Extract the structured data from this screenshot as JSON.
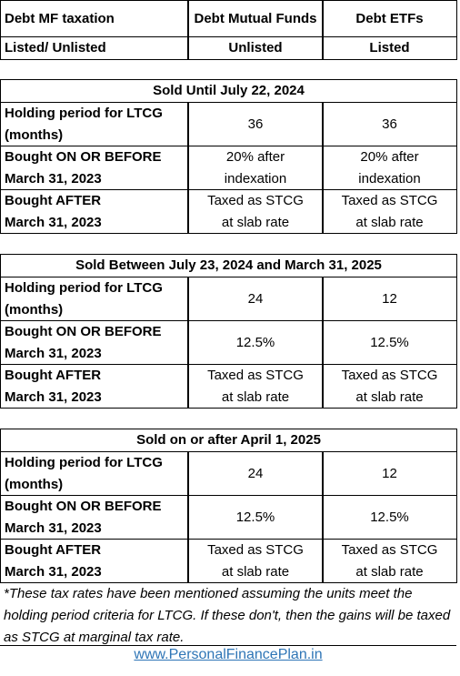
{
  "header": {
    "rows": [
      [
        [
          "Debt MF taxation"
        ],
        [
          "Debt Mutual Funds"
        ],
        [
          "Debt ETFs"
        ]
      ],
      [
        [
          "Listed/ Unlisted"
        ],
        [
          "Unlisted"
        ],
        [
          "Listed"
        ]
      ]
    ]
  },
  "sections": [
    {
      "title": "Sold Until July 22, 2024",
      "rows": [
        [
          [
            "Holding  period for LTCG",
            "(months)"
          ],
          [
            "36"
          ],
          [
            "36"
          ]
        ],
        [
          [
            "Bought ON OR BEFORE",
            "March 31, 2023"
          ],
          [
            "20% after",
            "indexation"
          ],
          [
            "20% after",
            "indexation"
          ]
        ],
        [
          [
            "Bought AFTER",
            "March 31, 2023"
          ],
          [
            "Taxed as STCG",
            "at slab rate"
          ],
          [
            "Taxed as STCG",
            "at slab rate"
          ]
        ]
      ]
    },
    {
      "title": "Sold Between July 23, 2024 and March 31, 2025",
      "rows": [
        [
          [
            "Holding  period for LTCG",
            "(months)"
          ],
          [
            "24"
          ],
          [
            "12"
          ]
        ],
        [
          [
            "Bought ON OR BEFORE",
            "March 31, 2023"
          ],
          [
            "12.5%"
          ],
          [
            "12.5%"
          ]
        ],
        [
          [
            "Bought AFTER",
            "March 31, 2023"
          ],
          [
            "Taxed as STCG",
            "at slab rate"
          ],
          [
            "Taxed as STCG",
            "at slab rate"
          ]
        ]
      ]
    },
    {
      "title": "Sold on or after April 1, 2025",
      "rows": [
        [
          [
            "Holding  period for LTCG",
            "(months)"
          ],
          [
            "24"
          ],
          [
            "12"
          ]
        ],
        [
          [
            "Bought ON OR BEFORE",
            "March 31, 2023"
          ],
          [
            "12.5%"
          ],
          [
            "12.5%"
          ]
        ],
        [
          [
            "Bought AFTER",
            "March 31, 2023"
          ],
          [
            "Taxed as STCG",
            "at slab rate"
          ],
          [
            "Taxed as STCG",
            "at slab rate"
          ]
        ]
      ]
    }
  ],
  "footnote": "*These tax rates have been mentioned assuming the units meet the holding period criteria for LTCG. If these don't, then the gains will be taxed as STCG at marginal tax rate.",
  "link": "www.PersonalFinancePlan.in"
}
